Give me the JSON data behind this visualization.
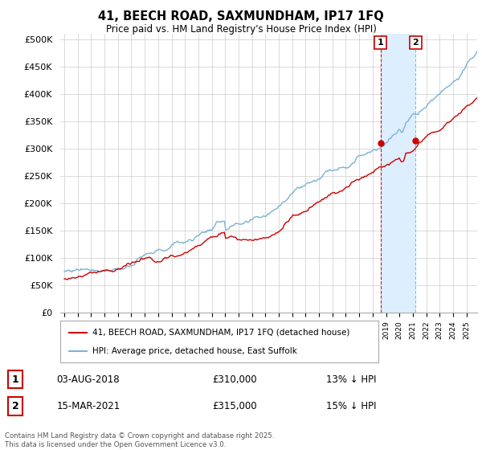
{
  "title1": "41, BEECH ROAD, SAXMUNDHAM, IP17 1FQ",
  "title2": "Price paid vs. HM Land Registry's House Price Index (HPI)",
  "hpi_color": "#7ab3d4",
  "price_color": "#cc0000",
  "shade_color": "#ddeeff",
  "sale1_x": 2018.59,
  "sale1_y": 310000,
  "sale2_x": 2021.21,
  "sale2_y": 315000,
  "legend_line1": "41, BEECH ROAD, SAXMUNDHAM, IP17 1FQ (detached house)",
  "legend_line2": "HPI: Average price, detached house, East Suffolk",
  "row1_num": "1",
  "row1_date": "03-AUG-2018",
  "row1_price": "£310,000",
  "row1_hpi": "13% ↓ HPI",
  "row2_num": "2",
  "row2_date": "15-MAR-2021",
  "row2_price": "£315,000",
  "row2_hpi": "15% ↓ HPI",
  "footer": "Contains HM Land Registry data © Crown copyright and database right 2025.\nThis data is licensed under the Open Government Licence v3.0.",
  "yticks": [
    0,
    50000,
    100000,
    150000,
    200000,
    250000,
    300000,
    350000,
    400000,
    450000,
    500000
  ],
  "ytick_labels": [
    "£0",
    "£50K",
    "£100K",
    "£150K",
    "£200K",
    "£250K",
    "£300K",
    "£350K",
    "£400K",
    "£450K",
    "£500K"
  ],
  "xmin": 1994.7,
  "xmax": 2025.8,
  "ymin": 0,
  "ymax": 510000,
  "bg_color": "#ffffff",
  "grid_color": "#cccccc"
}
